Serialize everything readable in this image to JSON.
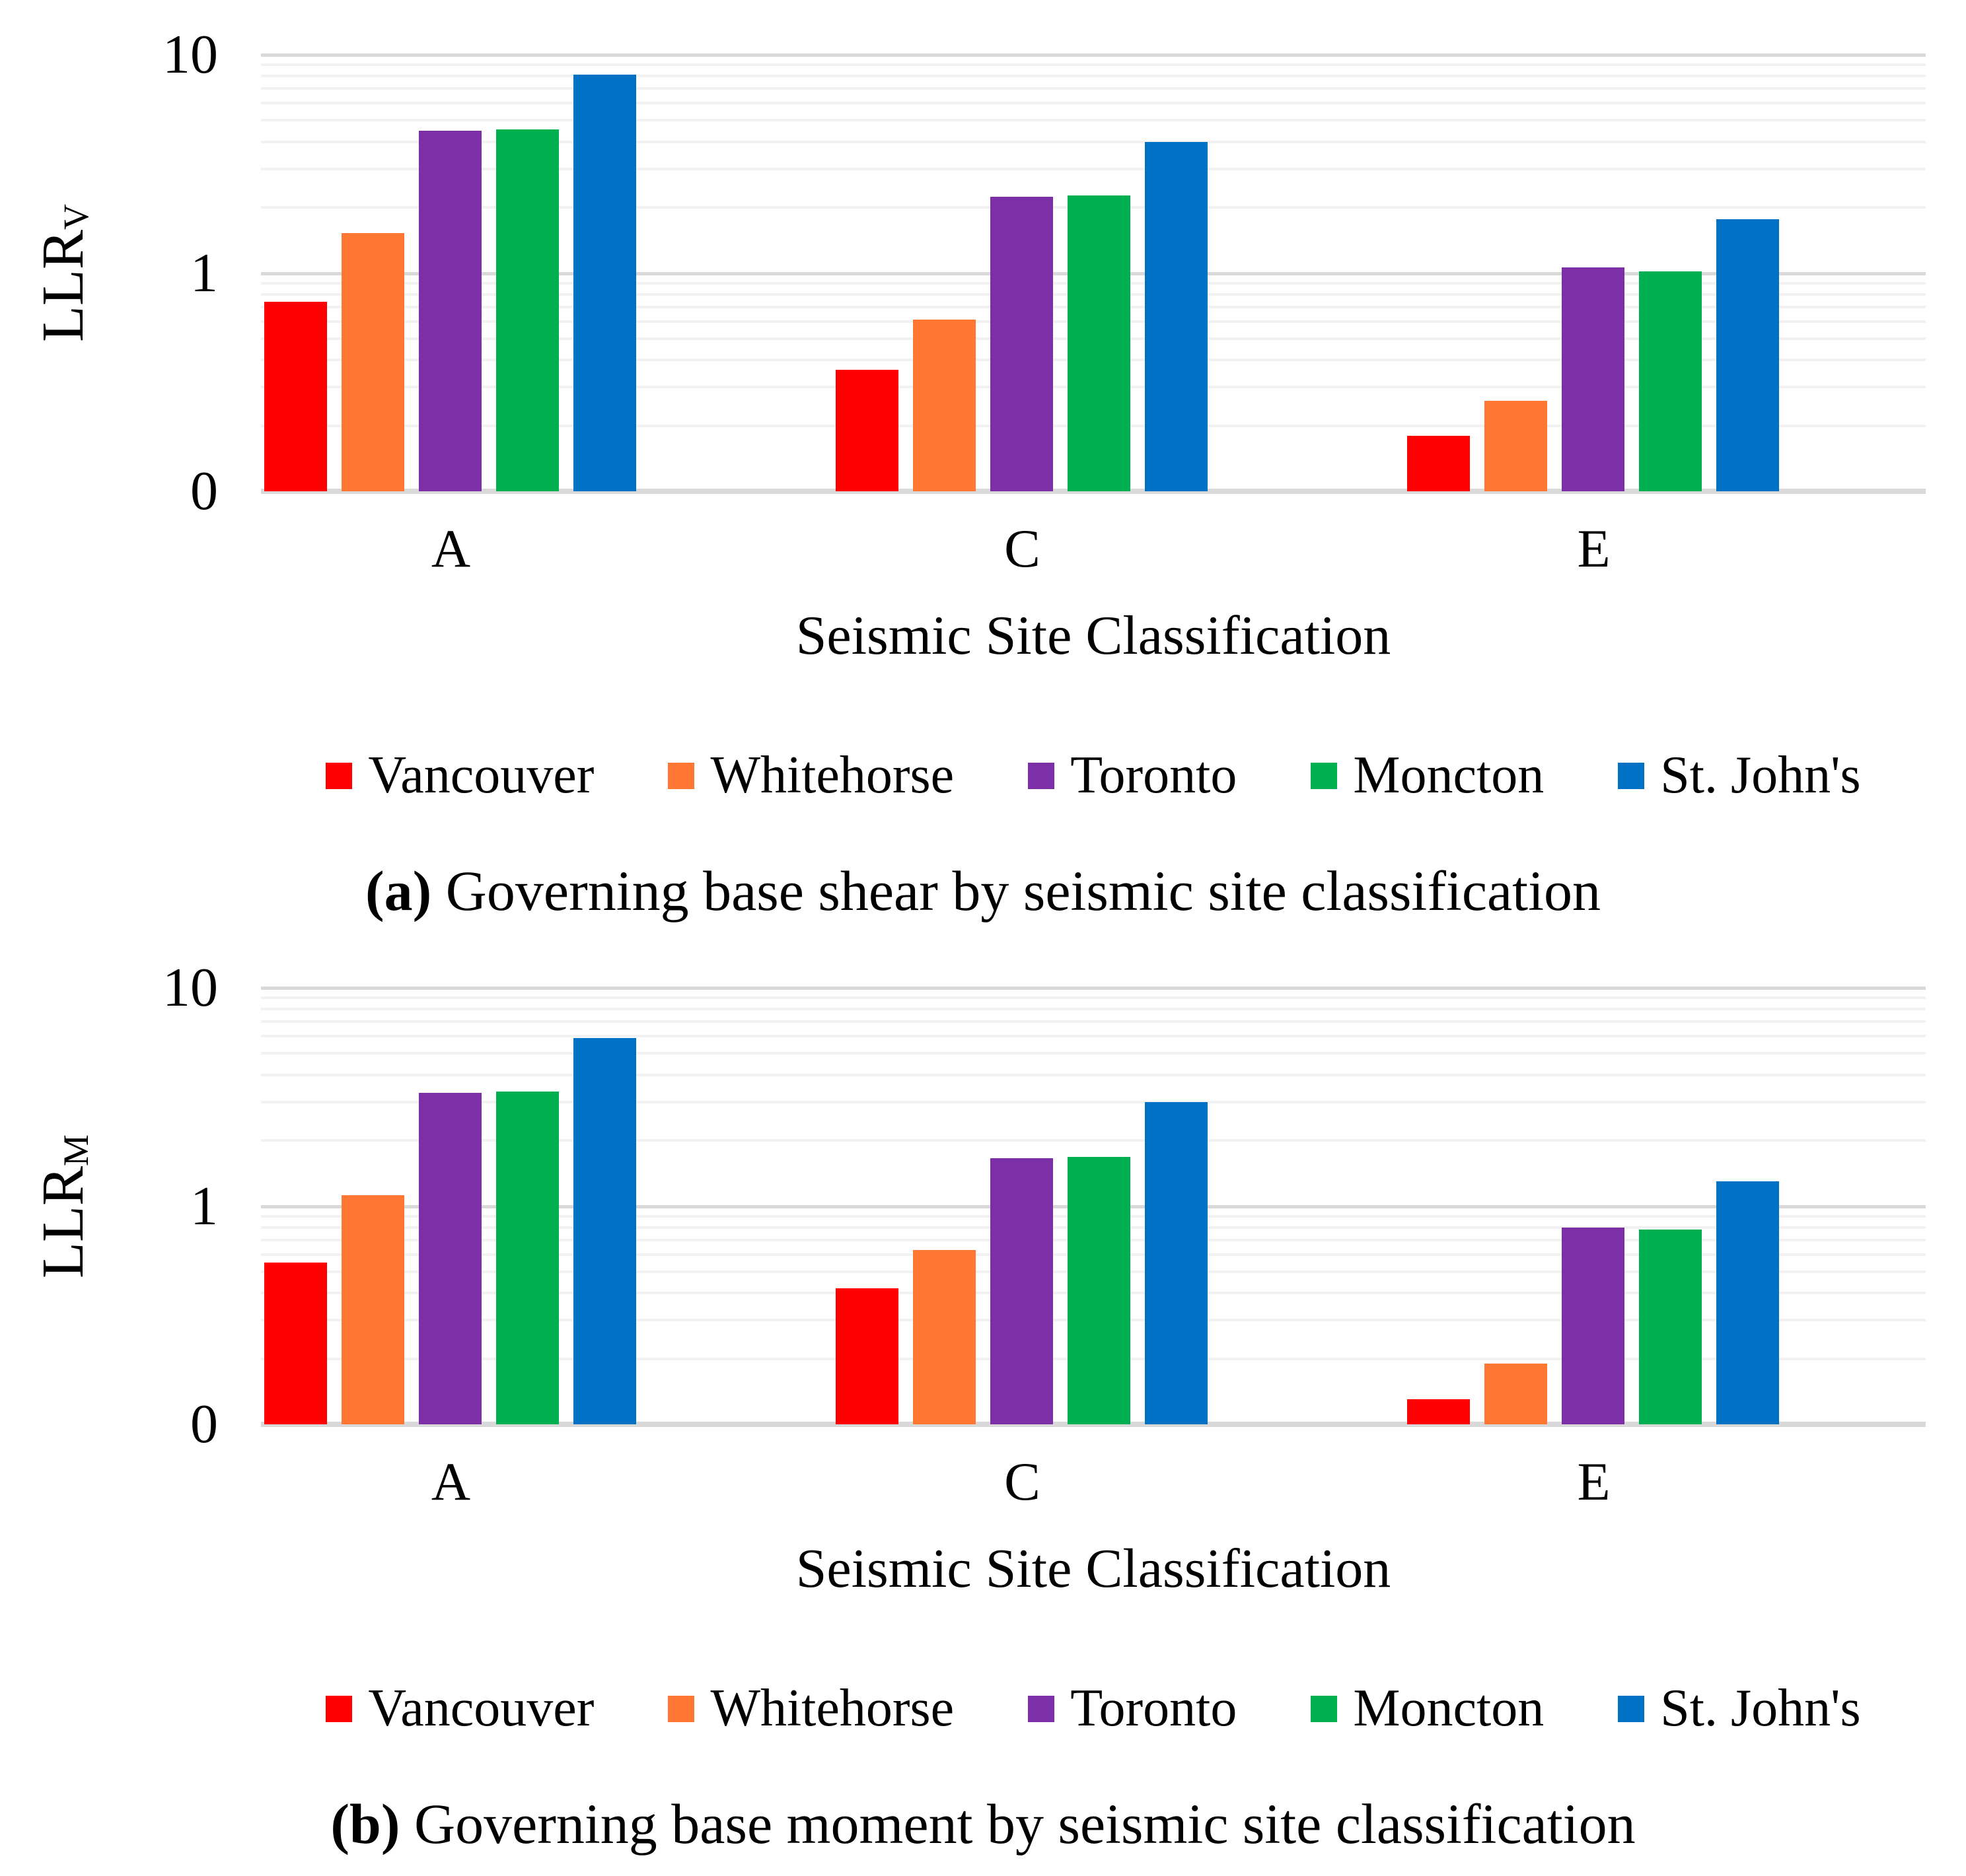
{
  "figure_background": "#FFFFFF",
  "gridline_colors": {
    "minor": "#F2F2F2",
    "major": "#D9D9D9",
    "baseline": "#D9D9D9"
  },
  "chart_data": [
    {
      "panel": "a",
      "type": "bar",
      "y_axis": {
        "label_main": "LLR",
        "label_sub": "V",
        "scale": "log",
        "min": 0.1,
        "max": 10,
        "tick_labels": [
          "10",
          "1",
          "0"
        ],
        "grid": "on"
      },
      "x_axis": {
        "label": "Seismic Site Classification"
      },
      "categories": [
        "A",
        "C",
        "E"
      ],
      "series": [
        {
          "name": "Vancouver",
          "color": "#FF0000",
          "values": [
            0.74,
            0.36,
            0.18
          ]
        },
        {
          "name": "Whitehorse",
          "color": "#FF7733",
          "values": [
            1.52,
            0.61,
            0.26
          ]
        },
        {
          "name": "Toronto",
          "color": "#7C2FA6",
          "values": [
            4.5,
            2.24,
            1.06
          ]
        },
        {
          "name": "Moncton",
          "color": "#00B050",
          "values": [
            4.55,
            2.27,
            1.02
          ]
        },
        {
          "name": "St. John's",
          "color": "#0072C6",
          "values": [
            8.1,
            4.0,
            1.77
          ]
        }
      ],
      "legend_position": "bottom",
      "caption": {
        "tag": "a",
        "text": "Governing base shear by seismic site classification"
      }
    },
    {
      "panel": "b",
      "type": "bar",
      "y_axis": {
        "label_main": "LLR",
        "label_sub": "M",
        "scale": "log",
        "min": 0.1,
        "max": 10,
        "tick_labels": [
          "10",
          "1",
          "0"
        ],
        "grid": "on"
      },
      "x_axis": {
        "label": "Seismic Site Classification"
      },
      "categories": [
        "A",
        "C",
        "E"
      ],
      "series": [
        {
          "name": "Vancouver",
          "color": "#FF0000",
          "values": [
            0.55,
            0.42,
            0.13
          ]
        },
        {
          "name": "Whitehorse",
          "color": "#FF7733",
          "values": [
            1.12,
            0.63,
            0.19
          ]
        },
        {
          "name": "Toronto",
          "color": "#7C2FA6",
          "values": [
            3.3,
            1.66,
            0.8
          ]
        },
        {
          "name": "Moncton",
          "color": "#00B050",
          "values": [
            3.35,
            1.68,
            0.78
          ]
        },
        {
          "name": "St. John's",
          "color": "#0072C6",
          "values": [
            5.9,
            3.0,
            1.3
          ]
        }
      ],
      "legend_position": "bottom",
      "caption": {
        "tag": "b",
        "text": "Governing base moment by seismic site classification"
      }
    }
  ]
}
